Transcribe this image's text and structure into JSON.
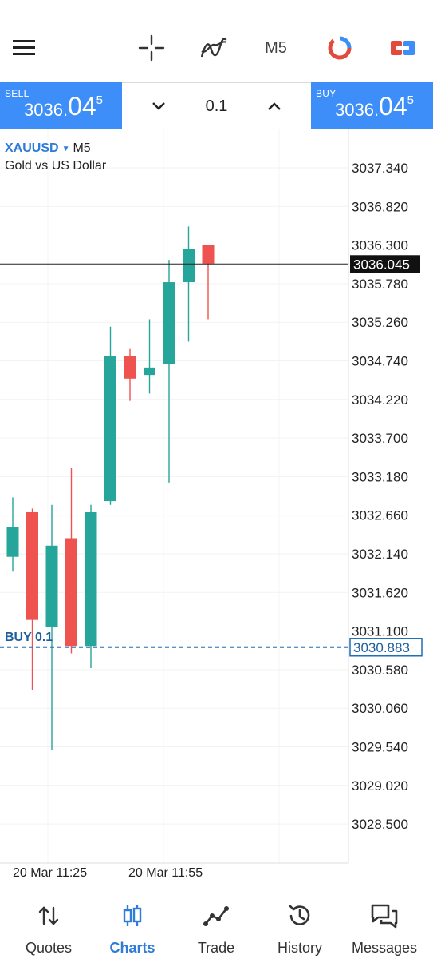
{
  "toolbar": {
    "timeframe": "M5",
    "icons": [
      "menu-icon",
      "crosshair-icon",
      "indicators-icon",
      "timeframe",
      "chart-type-icon",
      "trade-toggle-icon"
    ]
  },
  "tradebar": {
    "sell": {
      "label": "SELL",
      "price_small": "3036.",
      "price_big": "04",
      "price_sup": "5"
    },
    "buy": {
      "label": "BUY",
      "price_small": "3036.",
      "price_big": "04",
      "price_sup": "5"
    },
    "volume": "0.1"
  },
  "symbol": {
    "name": "XAUUSD",
    "timeframe": "M5",
    "description": "Gold vs US Dollar"
  },
  "position_label": "BUY 0.1",
  "chart_data": {
    "type": "candlestick",
    "symbol": "XAUUSD",
    "timeframe": "M5",
    "price_ticks": [
      "3037.340",
      "3036.820",
      "3036.300",
      "3035.780",
      "3035.260",
      "3034.740",
      "3034.220",
      "3033.700",
      "3033.180",
      "3032.660",
      "3032.140",
      "3031.620",
      "3031.100",
      "3030.580",
      "3030.060",
      "3029.540",
      "3029.020",
      "3028.500"
    ],
    "y_range": [
      3028.3,
      3038.3
    ],
    "current_price": "3036.045",
    "position_price": "3030.883",
    "time_labels": [
      "20 Mar 11:25",
      "20 Mar 11:55"
    ],
    "candles": [
      {
        "open": 3032.1,
        "high": 3032.9,
        "low": 3031.9,
        "close": 3032.5
      },
      {
        "open": 3032.7,
        "high": 3032.75,
        "low": 3030.3,
        "close": 3031.25
      },
      {
        "open": 3031.15,
        "high": 3032.8,
        "low": 3029.5,
        "close": 3032.25
      },
      {
        "open": 3032.35,
        "high": 3033.3,
        "low": 3030.8,
        "close": 3030.9
      },
      {
        "open": 3030.9,
        "high": 3032.8,
        "low": 3030.6,
        "close": 3032.7
      },
      {
        "open": 3032.85,
        "high": 3035.2,
        "low": 3032.8,
        "close": 3034.8
      },
      {
        "open": 3034.8,
        "high": 3034.9,
        "low": 3034.2,
        "close": 3034.5
      },
      {
        "open": 3034.55,
        "high": 3035.3,
        "low": 3034.3,
        "close": 3034.65
      },
      {
        "open": 3034.7,
        "high": 3036.1,
        "low": 3033.1,
        "close": 3035.8
      },
      {
        "open": 3035.8,
        "high": 3036.55,
        "low": 3035.0,
        "close": 3036.25
      },
      {
        "open": 3036.3,
        "high": 3036.3,
        "low": 3035.3,
        "close": 3036.05
      }
    ],
    "colors": {
      "bull": "#26a69a",
      "bear": "#ef5350",
      "position_line": "#1f6fb5"
    }
  },
  "nav": {
    "items": [
      {
        "label": "Quotes",
        "icon": "quotes-icon",
        "active": false
      },
      {
        "label": "Charts",
        "icon": "charts-icon",
        "active": true
      },
      {
        "label": "Trade",
        "icon": "trade-icon",
        "active": false
      },
      {
        "label": "History",
        "icon": "history-icon",
        "active": false
      },
      {
        "label": "Messages",
        "icon": "messages-icon",
        "active": false
      }
    ]
  },
  "colors": {
    "accent": "#3d8ef8",
    "nav_active": "#2f7bd8"
  }
}
